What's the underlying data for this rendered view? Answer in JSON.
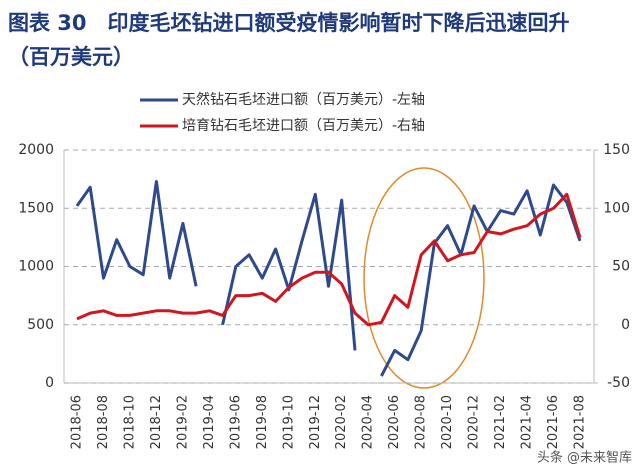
{
  "chart_data": {
    "type": "line",
    "title": "图表 30　印度毛坯钻进口额受疫情影响暂时下降后迅速回升（百万美元）",
    "categories": [
      "2018-06",
      null,
      "2018-08",
      null,
      "2018-10",
      null,
      "2018-12",
      null,
      "2019-02",
      null,
      "2019-04",
      null,
      "2019-06",
      null,
      "2019-08",
      null,
      "2019-10",
      null,
      "2019-12",
      null,
      "2020-02",
      null,
      "2020-04",
      null,
      "2020-06",
      null,
      "2020-08",
      null,
      "2020-10",
      null,
      "2020-12",
      null,
      "2021-02",
      null,
      "2021-04",
      null,
      "2021-06",
      null,
      "2021-08"
    ],
    "series": [
      {
        "name": "天然钻石毛坯进口额（百万美元）-左轴",
        "color": "#2f4a8c",
        "axis": "y",
        "values": [
          1520,
          1680,
          900,
          1230,
          1000,
          930,
          1730,
          900,
          1370,
          830,
          null,
          500,
          1000,
          1100,
          900,
          1150,
          800,
          1220,
          1620,
          830,
          1570,
          280,
          null,
          60,
          280,
          200,
          450,
          1200,
          1350,
          1100,
          1520,
          1300,
          1480,
          1450,
          1650,
          1270,
          1700,
          1550,
          1220
        ]
      },
      {
        "name": "培育钻石毛坯进口额（百万美元）-右轴",
        "color": "#d0161e",
        "axis": "y2",
        "values": [
          5,
          10,
          12,
          8,
          8,
          10,
          12,
          12,
          10,
          10,
          12,
          8,
          25,
          25,
          27,
          20,
          32,
          40,
          45,
          45,
          35,
          10,
          0,
          2,
          25,
          15,
          60,
          72,
          55,
          60,
          62,
          80,
          78,
          82,
          85,
          95,
          100,
          112,
          75
        ]
      }
    ],
    "ylim": [
      0,
      2000
    ],
    "yticks": [
      0,
      500,
      1000,
      1500,
      2000
    ],
    "y2lim": [
      -50,
      150
    ],
    "y2ticks": [
      -50,
      0,
      50,
      100,
      150
    ],
    "grid": true,
    "watermark": "头条 @未来智库"
  }
}
